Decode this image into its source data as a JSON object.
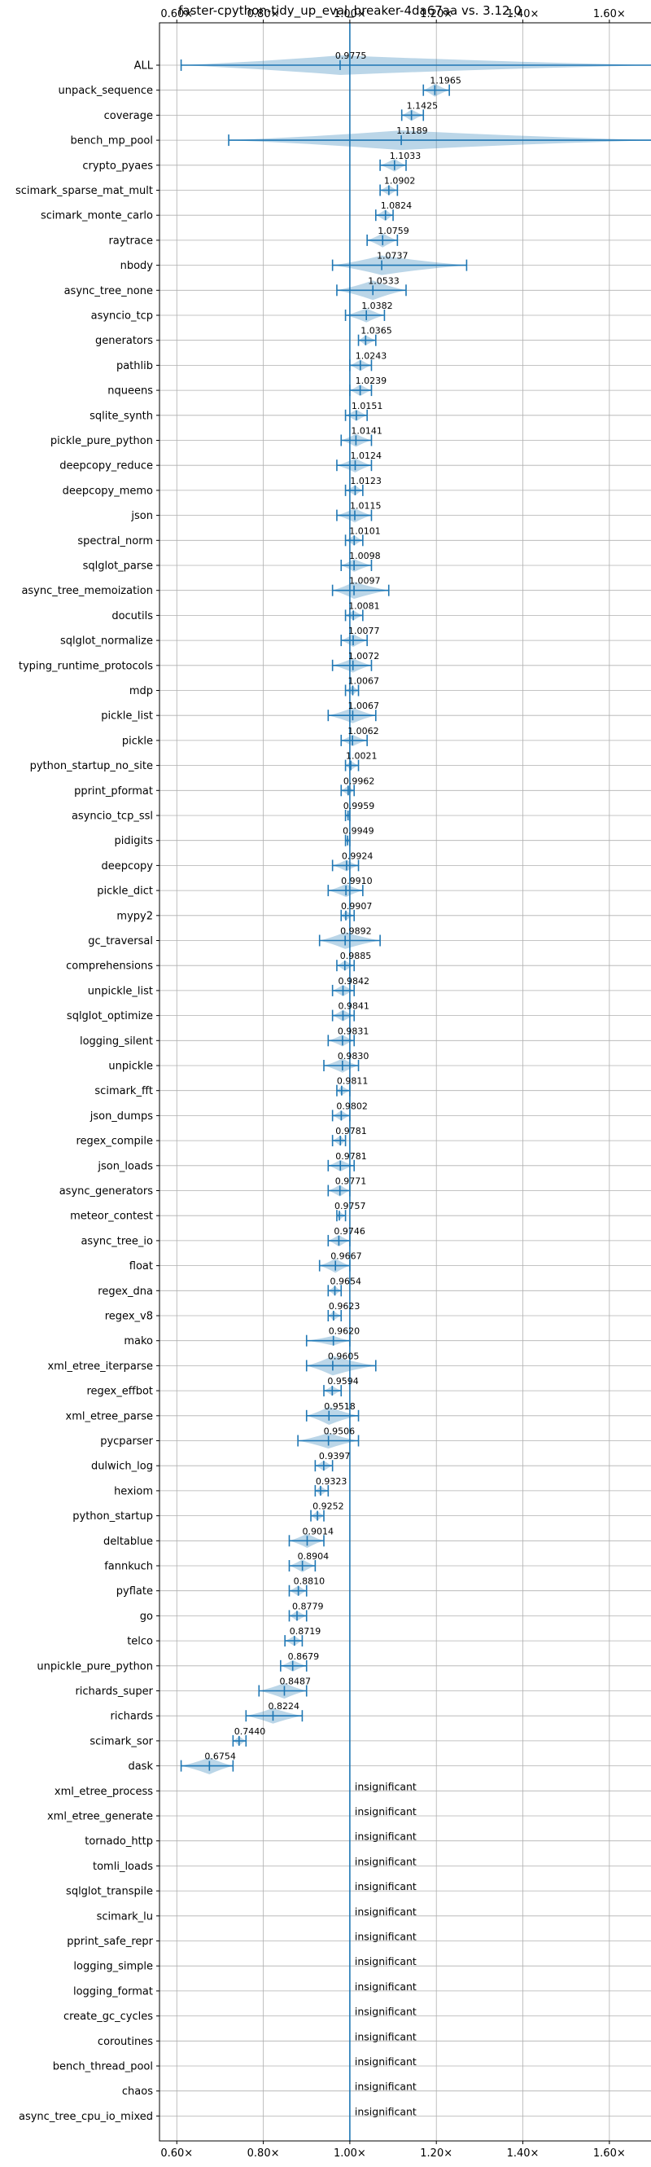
{
  "chart_data": {
    "type": "violin",
    "title": "faster-cpython-tidy_up_eval_breaker-4da67aa vs. 3.12.0",
    "xlim": [
      0.56,
      1.7
    ],
    "xticks": [
      "0.60×",
      "0.80×",
      "1.00×",
      "1.20×",
      "1.40×",
      "1.60×"
    ],
    "xtick_values": [
      0.6,
      0.8,
      1.0,
      1.2,
      1.4,
      1.6
    ],
    "reference": 1.0,
    "insignificant_label": "insignificant",
    "benchmarks": [
      {
        "name": "ALL",
        "value": 0.9775,
        "label": "0.9775",
        "lo": 0.61,
        "hi": 1.71,
        "spread": 0.05
      },
      {
        "name": "unpack_sequence",
        "value": 1.1965,
        "label": "1.1965",
        "lo": 1.17,
        "hi": 1.23,
        "spread": 0.025
      },
      {
        "name": "coverage",
        "value": 1.1425,
        "label": "1.1425",
        "lo": 1.12,
        "hi": 1.17,
        "spread": 0.02
      },
      {
        "name": "bench_mp_pool",
        "value": 1.1189,
        "label": "1.1189",
        "lo": 0.72,
        "hi": 1.71,
        "spread": 0.35
      },
      {
        "name": "crypto_pyaes",
        "value": 1.1033,
        "label": "1.1033",
        "lo": 1.07,
        "hi": 1.13,
        "spread": 0.025
      },
      {
        "name": "scimark_sparse_mat_mult",
        "value": 1.0902,
        "label": "1.0902",
        "lo": 1.07,
        "hi": 1.11,
        "spread": 0.015
      },
      {
        "name": "scimark_monte_carlo",
        "value": 1.0824,
        "label": "1.0824",
        "lo": 1.06,
        "hi": 1.1,
        "spread": 0.02
      },
      {
        "name": "raytrace",
        "value": 1.0759,
        "label": "1.0759",
        "lo": 1.04,
        "hi": 1.11,
        "spread": 0.03
      },
      {
        "name": "nbody",
        "value": 1.0737,
        "label": "1.0737",
        "lo": 0.96,
        "hi": 1.27,
        "spread": 0.08
      },
      {
        "name": "async_tree_none",
        "value": 1.0533,
        "label": "1.0533",
        "lo": 0.97,
        "hi": 1.13,
        "spread": 0.05
      },
      {
        "name": "asyncio_tcp",
        "value": 1.0382,
        "label": "1.0382",
        "lo": 0.99,
        "hi": 1.08,
        "spread": 0.03
      },
      {
        "name": "generators",
        "value": 1.0365,
        "label": "1.0365",
        "lo": 1.02,
        "hi": 1.06,
        "spread": 0.015
      },
      {
        "name": "pathlib",
        "value": 1.0243,
        "label": "1.0243",
        "lo": 1.0,
        "hi": 1.05,
        "spread": 0.02
      },
      {
        "name": "nqueens",
        "value": 1.0239,
        "label": "1.0239",
        "lo": 1.0,
        "hi": 1.05,
        "spread": 0.02
      },
      {
        "name": "sqlite_synth",
        "value": 1.0151,
        "label": "1.0151",
        "lo": 0.99,
        "hi": 1.04,
        "spread": 0.02
      },
      {
        "name": "pickle_pure_python",
        "value": 1.0141,
        "label": "1.0141",
        "lo": 0.98,
        "hi": 1.05,
        "spread": 0.025
      },
      {
        "name": "deepcopy_reduce",
        "value": 1.0124,
        "label": "1.0124",
        "lo": 0.97,
        "hi": 1.05,
        "spread": 0.03
      },
      {
        "name": "deepcopy_memo",
        "value": 1.0123,
        "label": "1.0123",
        "lo": 0.99,
        "hi": 1.03,
        "spread": 0.015
      },
      {
        "name": "json",
        "value": 1.0115,
        "label": "1.0115",
        "lo": 0.97,
        "hi": 1.05,
        "spread": 0.03
      },
      {
        "name": "spectral_norm",
        "value": 1.0101,
        "label": "1.0101",
        "lo": 0.99,
        "hi": 1.03,
        "spread": 0.015
      },
      {
        "name": "sqlglot_parse",
        "value": 1.0098,
        "label": "1.0098",
        "lo": 0.98,
        "hi": 1.05,
        "spread": 0.025
      },
      {
        "name": "async_tree_memoization",
        "value": 1.0097,
        "label": "1.0097",
        "lo": 0.96,
        "hi": 1.09,
        "spread": 0.04
      },
      {
        "name": "docutils",
        "value": 1.0081,
        "label": "1.0081",
        "lo": 0.99,
        "hi": 1.03,
        "spread": 0.015
      },
      {
        "name": "sqlglot_normalize",
        "value": 1.0077,
        "label": "1.0077",
        "lo": 0.98,
        "hi": 1.04,
        "spread": 0.025
      },
      {
        "name": "typing_runtime_protocols",
        "value": 1.0072,
        "label": "1.0072",
        "lo": 0.96,
        "hi": 1.05,
        "spread": 0.03
      },
      {
        "name": "mdp",
        "value": 1.0067,
        "label": "1.0067",
        "lo": 0.99,
        "hi": 1.02,
        "spread": 0.012
      },
      {
        "name": "pickle_list",
        "value": 1.0067,
        "label": "1.0067",
        "lo": 0.95,
        "hi": 1.06,
        "spread": 0.035
      },
      {
        "name": "pickle",
        "value": 1.0062,
        "label": "1.0062",
        "lo": 0.98,
        "hi": 1.04,
        "spread": 0.02
      },
      {
        "name": "python_startup_no_site",
        "value": 1.0021,
        "label": "1.0021",
        "lo": 0.99,
        "hi": 1.02,
        "spread": 0.012
      },
      {
        "name": "pprint_pformat",
        "value": 0.9962,
        "label": "0.9962",
        "lo": 0.98,
        "hi": 1.01,
        "spread": 0.012
      },
      {
        "name": "asyncio_tcp_ssl",
        "value": 0.9959,
        "label": "0.9959",
        "lo": 0.99,
        "hi": 1.0,
        "spread": 0.006
      },
      {
        "name": "pidigits",
        "value": 0.9949,
        "label": "0.9949",
        "lo": 0.99,
        "hi": 1.0,
        "spread": 0.006
      },
      {
        "name": "deepcopy",
        "value": 0.9924,
        "label": "0.9924",
        "lo": 0.96,
        "hi": 1.02,
        "spread": 0.02
      },
      {
        "name": "pickle_dict",
        "value": 0.991,
        "label": "0.9910",
        "lo": 0.95,
        "hi": 1.03,
        "spread": 0.025
      },
      {
        "name": "mypy2",
        "value": 0.9907,
        "label": "0.9907",
        "lo": 0.98,
        "hi": 1.01,
        "spread": 0.012
      },
      {
        "name": "gc_traversal",
        "value": 0.9892,
        "label": "0.9892",
        "lo": 0.93,
        "hi": 1.07,
        "spread": 0.04
      },
      {
        "name": "comprehensions",
        "value": 0.9885,
        "label": "0.9885",
        "lo": 0.97,
        "hi": 1.01,
        "spread": 0.015
      },
      {
        "name": "unpickle_list",
        "value": 0.9842,
        "label": "0.9842",
        "lo": 0.96,
        "hi": 1.01,
        "spread": 0.02
      },
      {
        "name": "sqlglot_optimize",
        "value": 0.9841,
        "label": "0.9841",
        "lo": 0.96,
        "hi": 1.01,
        "spread": 0.02
      },
      {
        "name": "logging_silent",
        "value": 0.9831,
        "label": "0.9831",
        "lo": 0.95,
        "hi": 1.01,
        "spread": 0.02
      },
      {
        "name": "unpickle",
        "value": 0.983,
        "label": "0.9830",
        "lo": 0.94,
        "hi": 1.02,
        "spread": 0.03
      },
      {
        "name": "scimark_fft",
        "value": 0.9811,
        "label": "0.9811",
        "lo": 0.97,
        "hi": 1.0,
        "spread": 0.012
      },
      {
        "name": "json_dumps",
        "value": 0.9802,
        "label": "0.9802",
        "lo": 0.96,
        "hi": 1.0,
        "spread": 0.015
      },
      {
        "name": "regex_compile",
        "value": 0.9781,
        "label": "0.9781",
        "lo": 0.96,
        "hi": 0.99,
        "spread": 0.015
      },
      {
        "name": "json_loads",
        "value": 0.9781,
        "label": "0.9781",
        "lo": 0.95,
        "hi": 1.01,
        "spread": 0.02
      },
      {
        "name": "async_generators",
        "value": 0.9771,
        "label": "0.9771",
        "lo": 0.95,
        "hi": 1.0,
        "spread": 0.02
      },
      {
        "name": "meteor_contest",
        "value": 0.9757,
        "label": "0.9757",
        "lo": 0.97,
        "hi": 0.99,
        "spread": 0.008
      },
      {
        "name": "async_tree_io",
        "value": 0.9746,
        "label": "0.9746",
        "lo": 0.95,
        "hi": 1.0,
        "spread": 0.02
      },
      {
        "name": "float",
        "value": 0.9667,
        "label": "0.9667",
        "lo": 0.93,
        "hi": 1.0,
        "spread": 0.03
      },
      {
        "name": "regex_dna",
        "value": 0.9654,
        "label": "0.9654",
        "lo": 0.95,
        "hi": 0.98,
        "spread": 0.012
      },
      {
        "name": "regex_v8",
        "value": 0.9623,
        "label": "0.9623",
        "lo": 0.95,
        "hi": 0.98,
        "spread": 0.012
      },
      {
        "name": "mako",
        "value": 0.962,
        "label": "0.9620",
        "lo": 0.9,
        "hi": 1.0,
        "spread": 0.012
      },
      {
        "name": "xml_etree_iterparse",
        "value": 0.9605,
        "label": "0.9605",
        "lo": 0.9,
        "hi": 1.06,
        "spread": 0.05
      },
      {
        "name": "regex_effbot",
        "value": 0.9594,
        "label": "0.9594",
        "lo": 0.94,
        "hi": 0.98,
        "spread": 0.012
      },
      {
        "name": "xml_etree_parse",
        "value": 0.9518,
        "label": "0.9518",
        "lo": 0.9,
        "hi": 1.02,
        "spread": 0.045
      },
      {
        "name": "pycparser",
        "value": 0.9506,
        "label": "0.9506",
        "lo": 0.88,
        "hi": 1.02,
        "spread": 0.035
      },
      {
        "name": "dulwich_log",
        "value": 0.9397,
        "label": "0.9397",
        "lo": 0.92,
        "hi": 0.96,
        "spread": 0.015
      },
      {
        "name": "hexiom",
        "value": 0.9323,
        "label": "0.9323",
        "lo": 0.92,
        "hi": 0.95,
        "spread": 0.012
      },
      {
        "name": "python_startup",
        "value": 0.9252,
        "label": "0.9252",
        "lo": 0.91,
        "hi": 0.94,
        "spread": 0.012
      },
      {
        "name": "deltablue",
        "value": 0.9014,
        "label": "0.9014",
        "lo": 0.86,
        "hi": 0.94,
        "spread": 0.03
      },
      {
        "name": "fannkuch",
        "value": 0.8904,
        "label": "0.8904",
        "lo": 0.86,
        "hi": 0.92,
        "spread": 0.025
      },
      {
        "name": "pyflate",
        "value": 0.881,
        "label": "0.8810",
        "lo": 0.86,
        "hi": 0.9,
        "spread": 0.015
      },
      {
        "name": "go",
        "value": 0.8779,
        "label": "0.8779",
        "lo": 0.86,
        "hi": 0.9,
        "spread": 0.015
      },
      {
        "name": "telco",
        "value": 0.8719,
        "label": "0.8719",
        "lo": 0.85,
        "hi": 0.89,
        "spread": 0.015
      },
      {
        "name": "unpickle_pure_python",
        "value": 0.8679,
        "label": "0.8679",
        "lo": 0.84,
        "hi": 0.9,
        "spread": 0.02
      },
      {
        "name": "richards_super",
        "value": 0.8487,
        "label": "0.8487",
        "lo": 0.79,
        "hi": 0.9,
        "spread": 0.035
      },
      {
        "name": "richards",
        "value": 0.8224,
        "label": "0.8224",
        "lo": 0.76,
        "hi": 0.89,
        "spread": 0.035
      },
      {
        "name": "scimark_sor",
        "value": 0.744,
        "label": "0.7440",
        "lo": 0.73,
        "hi": 0.76,
        "spread": 0.012
      },
      {
        "name": "dask",
        "value": 0.6754,
        "label": "0.6754",
        "lo": 0.61,
        "hi": 0.73,
        "spread": 0.04
      },
      {
        "name": "xml_etree_process",
        "value": null
      },
      {
        "name": "xml_etree_generate",
        "value": null
      },
      {
        "name": "tornado_http",
        "value": null
      },
      {
        "name": "tomli_loads",
        "value": null
      },
      {
        "name": "sqlglot_transpile",
        "value": null
      },
      {
        "name": "scimark_lu",
        "value": null
      },
      {
        "name": "pprint_safe_repr",
        "value": null
      },
      {
        "name": "logging_simple",
        "value": null
      },
      {
        "name": "logging_format",
        "value": null
      },
      {
        "name": "create_gc_cycles",
        "value": null
      },
      {
        "name": "coroutines",
        "value": null
      },
      {
        "name": "bench_thread_pool",
        "value": null
      },
      {
        "name": "chaos",
        "value": null
      },
      {
        "name": "async_tree_cpu_io_mixed",
        "value": null
      }
    ]
  }
}
